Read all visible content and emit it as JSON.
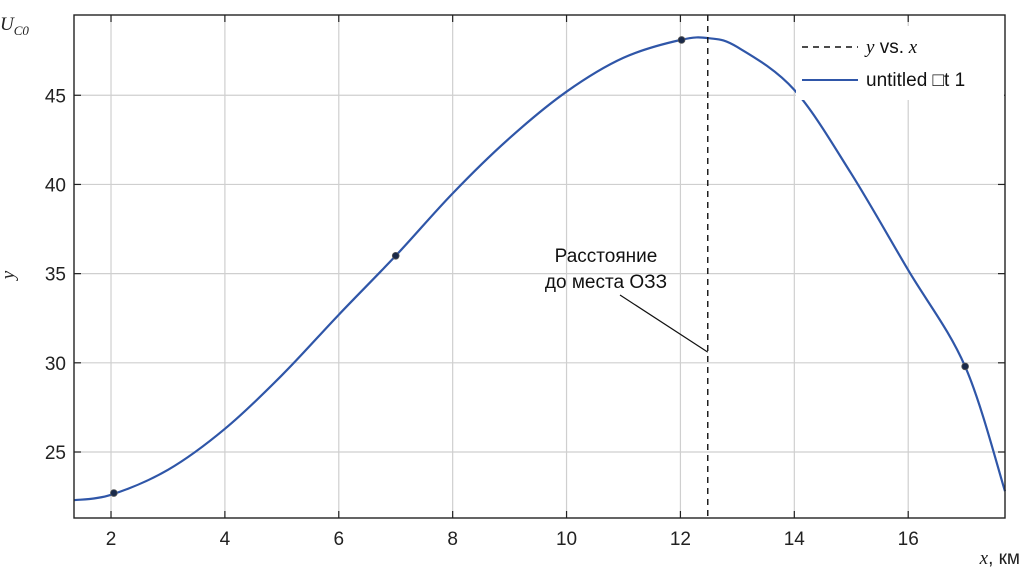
{
  "chart_data": {
    "type": "line",
    "xlabel": "x, км",
    "ylabel": "y",
    "corner_label": "U_C0",
    "xlim": [
      1.35,
      17.7
    ],
    "ylim": [
      21.3,
      49.5
    ],
    "x_ticks": [
      2,
      4,
      6,
      8,
      10,
      12,
      14,
      16
    ],
    "y_ticks": [
      25,
      30,
      35,
      40,
      45
    ],
    "grid": true,
    "legend_position": "top-right",
    "series": [
      {
        "name": "y vs. x",
        "kind": "points",
        "points": [
          {
            "x": 2.05,
            "y": 22.7
          },
          {
            "x": 7.0,
            "y": 36.0
          },
          {
            "x": 12.02,
            "y": 48.1
          },
          {
            "x": 17.0,
            "y": 29.8
          }
        ]
      },
      {
        "name": "untitled □t 1",
        "kind": "line",
        "x": [
          1.35,
          2.0,
          3.0,
          4.0,
          5.0,
          6.0,
          7.0,
          8.0,
          9.0,
          10.0,
          11.0,
          12.0,
          12.5,
          13.0,
          14.0,
          15.0,
          16.0,
          17.0,
          17.7
        ],
        "y": [
          22.3,
          22.6,
          24.0,
          26.3,
          29.3,
          32.7,
          36.0,
          39.5,
          42.6,
          45.2,
          47.1,
          48.1,
          48.2,
          47.7,
          45.3,
          40.6,
          35.2,
          29.8,
          22.8
        ]
      }
    ],
    "vline": {
      "x": 12.48,
      "style": "dashed"
    },
    "annotation": {
      "lines": [
        "Расстояние",
        "до места ОЗЗ"
      ],
      "target_x": 12.48,
      "target_y": 30.6
    },
    "colors": {
      "curve": "#2f56a8",
      "grid": "#cfcfcf",
      "axis": "#222222",
      "point": "#1a2a4a"
    }
  }
}
